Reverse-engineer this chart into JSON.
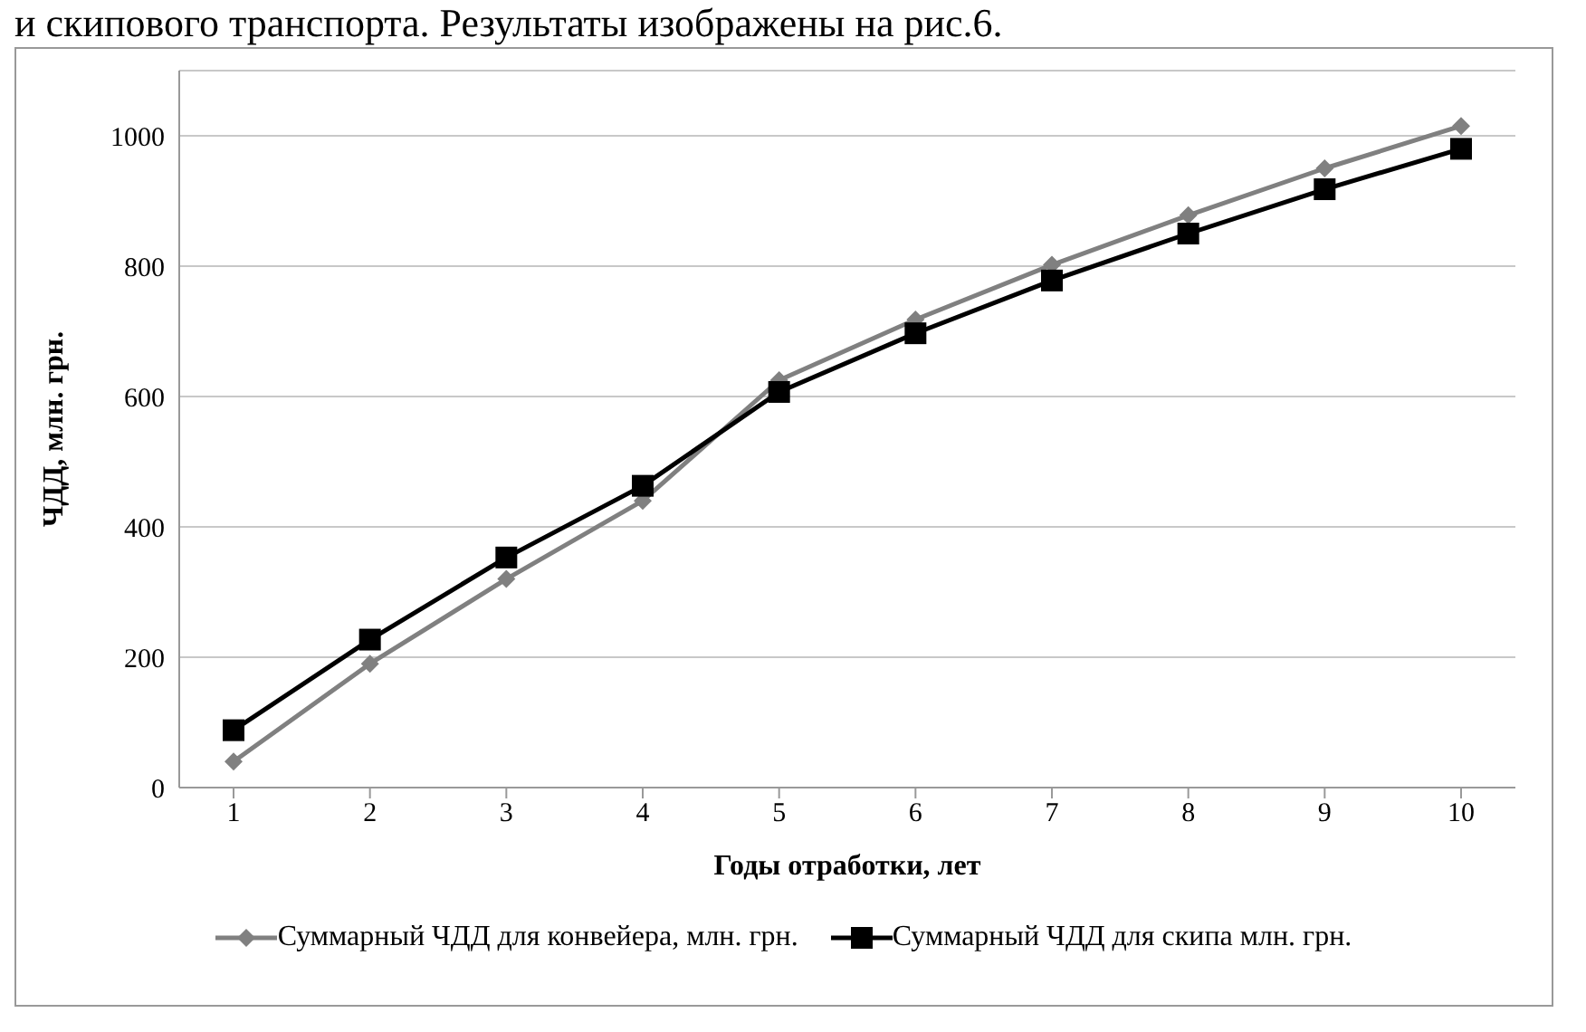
{
  "chart_data": {
    "type": "line",
    "annotations": [
      "и скипового транспорта. Результаты изображены на рис.6."
    ],
    "xlabel": "Годы отработки,  лет",
    "ylabel": "ЧДД, млн. грн.",
    "categories": [
      "1",
      "2",
      "3",
      "4",
      "5",
      "6",
      "7",
      "8",
      "9",
      "10"
    ],
    "series": [
      {
        "name": "Суммарный ЧДД для конвейера, млн. грн.",
        "color": "#808080",
        "marker": "diamond",
        "values": [
          40,
          190,
          320,
          440,
          625,
          718,
          802,
          878,
          950,
          1015
        ]
      },
      {
        "name": "Суммарный ЧДД для скипа млн. грн.",
        "color": "#000000",
        "marker": "square",
        "values": [
          88,
          227,
          353,
          463,
          607,
          697,
          778,
          850,
          918,
          980
        ]
      }
    ],
    "ylim": [
      0,
      1100
    ],
    "yticks": [
      0,
      200,
      400,
      600,
      800,
      1000
    ],
    "grid": "y",
    "legend": "bottom"
  }
}
